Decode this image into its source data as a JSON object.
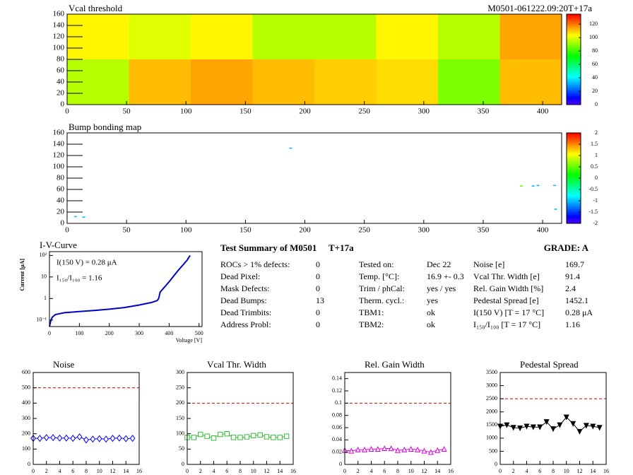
{
  "chart_data": [
    {
      "type": "heatmap",
      "title": "Vcal threshold",
      "subtitle": "M0501-061222.09:20T+17a",
      "xlim": [
        0,
        416
      ],
      "ylim": [
        0,
        160
      ],
      "xticks": [
        0,
        50,
        100,
        150,
        200,
        250,
        300,
        350,
        400
      ],
      "yticks": [
        0,
        20,
        40,
        60,
        80,
        100,
        120,
        140,
        160
      ],
      "zlim": [
        0,
        135
      ],
      "zticks": [
        0,
        20,
        40,
        60,
        80,
        100,
        120
      ],
      "values": [
        [
          95,
          112,
          115,
          112,
          110,
          108,
          88,
          112
        ],
        [
          105,
          100,
          105,
          95,
          95,
          105,
          95,
          115
        ]
      ]
    },
    {
      "type": "scatter",
      "title": "Bump bonding map",
      "xlim": [
        0,
        416
      ],
      "ylim": [
        0,
        160
      ],
      "xticks": [
        0,
        50,
        100,
        150,
        200,
        250,
        300,
        350,
        400
      ],
      "yticks": [
        0,
        20,
        40,
        60,
        80,
        100,
        120,
        140,
        160
      ],
      "zlim": [
        -2,
        2
      ],
      "zticks": [
        -2,
        -1.5,
        -1,
        -0.5,
        0,
        0.5,
        1,
        1.5,
        2
      ],
      "x": [
        7,
        14,
        188,
        382,
        392,
        396,
        410,
        411
      ],
      "y": [
        12,
        11,
        133,
        66,
        66,
        67,
        67,
        25
      ],
      "values": [
        -1,
        -1,
        -1,
        0.5,
        -1,
        -1,
        -1,
        -1
      ]
    },
    {
      "type": "line",
      "title": "I-V-Curve",
      "log_y": true,
      "xlabel": "Voltage [V]",
      "ylabel": "Current [μA]",
      "xlim": [
        0,
        510
      ],
      "ylim": [
        0.05,
        150
      ],
      "xticks": [
        0,
        100,
        200,
        300,
        400,
        500
      ],
      "yticks": [
        {
          "value": 0.1,
          "label": "10⁻¹"
        },
        1,
        10,
        {
          "value": 100,
          "label": "10²"
        }
      ],
      "annotations": [
        "I(150 V) = 0.28 μA",
        "I₁₅₀/I₁₀₀ =  1.16"
      ],
      "series": [
        {
          "color": "#0000cc",
          "x": [
            0,
            5,
            10,
            20,
            50,
            100,
            150,
            200,
            250,
            300,
            340,
            360,
            365,
            370,
            400,
            430,
            460,
            470
          ],
          "values": [
            0.05,
            0.1,
            0.14,
            0.18,
            0.22,
            0.25,
            0.28,
            0.32,
            0.38,
            0.5,
            0.65,
            0.8,
            1.0,
            2.0,
            6,
            20,
            60,
            100
          ]
        }
      ]
    },
    {
      "type": "line",
      "title": "Noise",
      "xlim": [
        0,
        16
      ],
      "ylim": [
        0,
        600
      ],
      "xticks": [
        0,
        2,
        4,
        6,
        8,
        10,
        12,
        14,
        16
      ],
      "yticks": [
        0,
        100,
        200,
        300,
        400,
        500,
        600
      ],
      "threshold": 500,
      "threshold_color": "#cc0000",
      "series": [
        {
          "color": "#0000ff",
          "marker": "diamond",
          "x": [
            0,
            1,
            2,
            3,
            4,
            5,
            6,
            7,
            8,
            9,
            10,
            11,
            12,
            13,
            14,
            15
          ],
          "values": [
            170,
            170,
            175,
            175,
            172,
            172,
            170,
            180,
            160,
            165,
            168,
            165,
            170,
            172,
            168,
            170
          ]
        }
      ]
    },
    {
      "type": "line",
      "title": "Vcal Thr. Width",
      "xlim": [
        0,
        16
      ],
      "ylim": [
        0,
        300
      ],
      "xticks": [
        0,
        2,
        4,
        6,
        8,
        10,
        12,
        14,
        16
      ],
      "yticks": [
        0,
        50,
        100,
        150,
        200,
        250,
        300
      ],
      "threshold": 200,
      "threshold_color": "#cc0000",
      "series": [
        {
          "color": "#33bb33",
          "marker": "square",
          "x": [
            0,
            1,
            2,
            3,
            4,
            5,
            6,
            7,
            8,
            9,
            10,
            11,
            12,
            13,
            14,
            15
          ],
          "values": [
            88,
            88,
            98,
            92,
            86,
            98,
            100,
            88,
            88,
            90,
            94,
            96,
            90,
            88,
            88,
            92
          ]
        }
      ]
    },
    {
      "type": "line",
      "title": "Rel. Gain Width",
      "xlim": [
        0,
        16
      ],
      "ylim": [
        0,
        0.15
      ],
      "xticks": [
        0,
        2,
        4,
        6,
        8,
        10,
        12,
        14,
        16
      ],
      "yticks": [
        0,
        0.02,
        0.04,
        0.06,
        0.08,
        0.1,
        0.12,
        0.14
      ],
      "threshold": 0.1,
      "threshold_color": "#cc0000",
      "series": [
        {
          "color": "#dd00dd",
          "marker": "triangle",
          "x": [
            0,
            1,
            2,
            3,
            4,
            5,
            6,
            7,
            8,
            9,
            10,
            11,
            12,
            13,
            14,
            15
          ],
          "values": [
            0.023,
            0.022,
            0.024,
            0.024,
            0.025,
            0.025,
            0.026,
            0.026,
            0.023,
            0.024,
            0.025,
            0.024,
            0.022,
            0.02,
            0.023,
            0.025
          ]
        }
      ]
    },
    {
      "type": "line",
      "title": "Pedestal Spread",
      "xlim": [
        0,
        16
      ],
      "ylim": [
        0,
        3500
      ],
      "xticks": [
        0,
        2,
        4,
        6,
        8,
        10,
        12,
        14,
        16
      ],
      "yticks": [
        0,
        500,
        1000,
        1500,
        2000,
        2500,
        3000,
        3500
      ],
      "threshold": 2500,
      "threshold_color": "#cc0000",
      "series": [
        {
          "color": "#000000",
          "marker": "triangle-down",
          "x": [
            0,
            1,
            2,
            3,
            4,
            5,
            6,
            7,
            8,
            9,
            10,
            11,
            12,
            13,
            14,
            15
          ],
          "values": [
            1450,
            1500,
            1400,
            1380,
            1450,
            1420,
            1420,
            1620,
            1350,
            1500,
            1800,
            1550,
            1250,
            1480,
            1450,
            1400
          ]
        }
      ]
    }
  ],
  "summary": {
    "title": "Test Summary of M0501",
    "tag": "T+17a",
    "grade": "GRADE:  A",
    "columns": [
      [
        [
          "ROCs > 1% defects:",
          0
        ],
        [
          "Dead Pixel:",
          0
        ],
        [
          "Mask Defects:",
          0
        ],
        [
          "Dead Bumps:",
          13
        ],
        [
          "Dead Trimbits:",
          0
        ],
        [
          "Address Probl:",
          0
        ]
      ],
      [
        [
          "Tested on:",
          "Dec 22"
        ],
        [
          "Temp. [°C]:",
          "16.9 +- 0.3"
        ],
        [
          "Trim / phCal:",
          "yes / yes"
        ],
        [
          "Therm. cycl.:",
          "yes"
        ],
        [
          "TBM1:",
          "ok"
        ],
        [
          "TBM2:",
          "ok"
        ]
      ],
      [
        [
          "Noise [e]",
          169.7
        ],
        [
          "Vcal Thr. Width [e]",
          91.4
        ],
        [
          "Rel. Gain Width [%]",
          2.4
        ],
        [
          "Pedestal Spread [e]",
          1452.1
        ],
        [
          "I(150 V) [T = 17 °C]",
          "0.28 μA"
        ],
        [
          "I₁₅₀/I₁₀₀  [T = 17 °C]",
          1.16
        ]
      ]
    ]
  }
}
